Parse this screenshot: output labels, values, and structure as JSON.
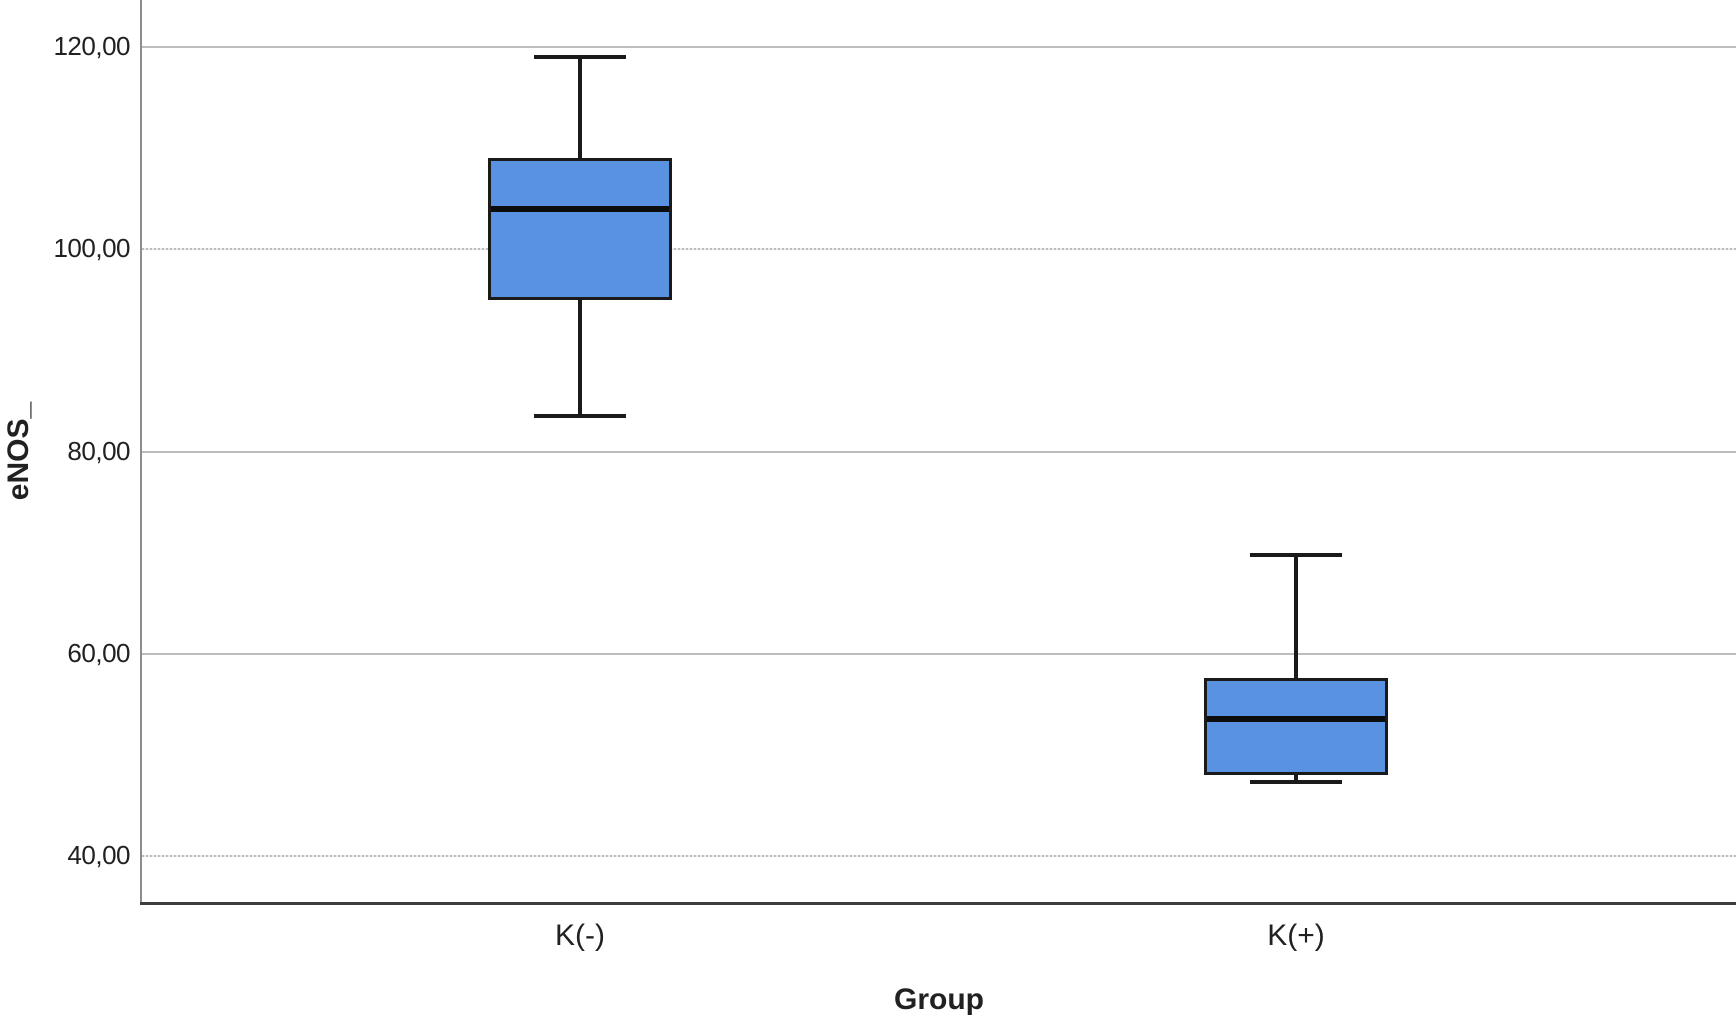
{
  "chart_data": {
    "type": "box",
    "title": "",
    "xlabel": "Group",
    "ylabel": "eNOS_",
    "categories": [
      "K(-)",
      "K(+)"
    ],
    "y_ticks": [
      {
        "value": 120,
        "label": "120,00"
      },
      {
        "value": 100,
        "label": "100,00"
      },
      {
        "value": 80,
        "label": "80,00"
      },
      {
        "value": 60,
        "label": "60,00"
      },
      {
        "value": 40,
        "label": "40,00"
      }
    ],
    "ylim": [
      35.4,
      124.6
    ],
    "grid": true,
    "legend": "none",
    "decimal_separator": ",",
    "series": [
      {
        "category": "K(-)",
        "whisker_low": 83.5,
        "q1": 95.0,
        "median": 104.0,
        "q3": 109.0,
        "whisker_high": 119.0
      },
      {
        "category": "K(+)",
        "whisker_low": 47.3,
        "q1": 48.0,
        "median": 53.5,
        "q3": 57.6,
        "whisker_high": 69.8
      }
    ],
    "colors": {
      "box_fill": "#5892e0",
      "box_border": "#1a1a1a",
      "median": "#0d0d0d",
      "whisker": "#1a1a1a",
      "gridline": "#bdbdbd",
      "axis_x": "#3c3c3c",
      "axis_y": "#8c8c8c",
      "text": "#212121",
      "background": "#ffffff"
    }
  }
}
